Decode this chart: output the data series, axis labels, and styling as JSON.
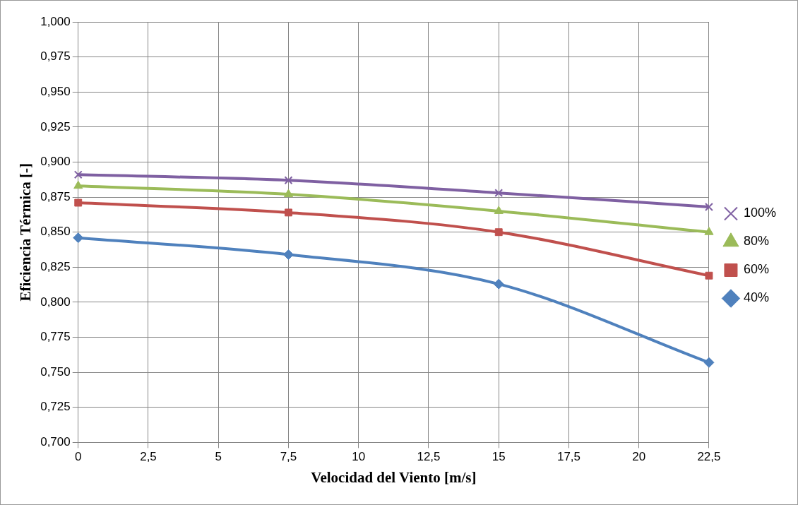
{
  "chart_data": {
    "type": "line",
    "xlabel": "Velocidad del Viento [m/s]",
    "ylabel": "Eficiencia Térmica [-]",
    "x": [
      0,
      7.5,
      15,
      22.5
    ],
    "series": [
      {
        "name": "100%",
        "color": "#7f60a2",
        "marker": "cross",
        "values": [
          0.891,
          0.887,
          0.878,
          0.868
        ]
      },
      {
        "name": "80%",
        "color": "#9bbb59",
        "marker": "triangle",
        "values": [
          0.883,
          0.877,
          0.865,
          0.85
        ]
      },
      {
        "name": "60%",
        "color": "#c0504d",
        "marker": "square",
        "values": [
          0.871,
          0.864,
          0.85,
          0.819
        ]
      },
      {
        "name": "40%",
        "color": "#4f81bd",
        "marker": "diamond",
        "values": [
          0.846,
          0.834,
          0.813,
          0.757
        ]
      }
    ],
    "xlim": [
      0,
      22.5
    ],
    "xticks": [
      0,
      {
        "value": 2.5,
        "label": "2,5"
      },
      5,
      {
        "value": 7.5,
        "label": "7,5"
      },
      10,
      {
        "value": 12.5,
        "label": "12,5"
      },
      15,
      {
        "value": 17.5,
        "label": "17,5"
      },
      20,
      {
        "value": 22.5,
        "label": "22,5"
      }
    ],
    "ylim": [
      0.7,
      1.0
    ],
    "yticks": [
      {
        "value": 0.7,
        "label": "0,700"
      },
      {
        "value": 0.725,
        "label": "0,725"
      },
      {
        "value": 0.75,
        "label": "0,750"
      },
      {
        "value": 0.775,
        "label": "0,775"
      },
      {
        "value": 0.8,
        "label": "0,800"
      },
      {
        "value": 0.825,
        "label": "0,825"
      },
      {
        "value": 0.85,
        "label": "0,850"
      },
      {
        "value": 0.875,
        "label": "0,875"
      },
      {
        "value": 0.9,
        "label": "0,900"
      },
      {
        "value": 0.925,
        "label": "0,925"
      },
      {
        "value": 0.95,
        "label": "0,950"
      },
      {
        "value": 0.975,
        "label": "0,975"
      },
      {
        "value": 1.0,
        "label": "1,000"
      }
    ],
    "grid": true,
    "legend": "right"
  }
}
